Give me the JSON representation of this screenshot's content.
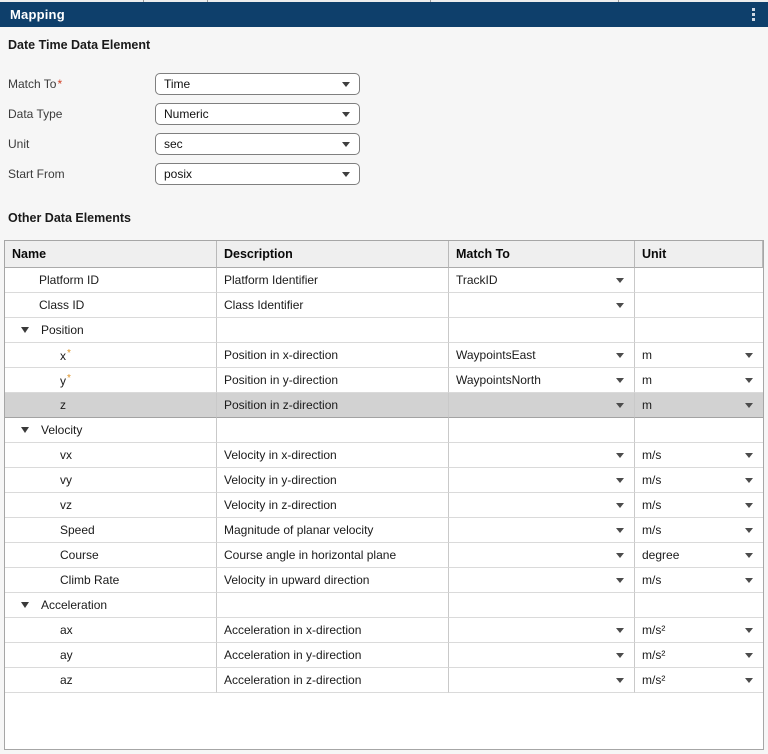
{
  "titlebar": {
    "title": "Mapping",
    "bg_color": "#0e3f6b"
  },
  "datetime_section": {
    "heading": "Date Time Data Element",
    "fields": [
      {
        "label": "Match To",
        "required": true,
        "value": "Time"
      },
      {
        "label": "Data Type",
        "required": false,
        "value": "Numeric"
      },
      {
        "label": "Unit",
        "required": false,
        "value": "sec"
      },
      {
        "label": "Start From",
        "required": false,
        "value": "posix"
      }
    ]
  },
  "other_section": {
    "heading": "Other Data Elements",
    "table": {
      "columns": [
        "Name",
        "Description",
        "Match To",
        "Unit"
      ],
      "rows": [
        {
          "level": 1,
          "name": "Platform ID",
          "required": false,
          "description": "Platform Identifier",
          "match_to": "TrackID",
          "match_dropdown": true,
          "unit": "",
          "unit_dropdown": false,
          "selected": false
        },
        {
          "level": 1,
          "name": "Class ID",
          "required": false,
          "description": "Class Identifier",
          "match_to": "",
          "match_dropdown": true,
          "unit": "",
          "unit_dropdown": false,
          "selected": false
        },
        {
          "group": true,
          "name": "Position"
        },
        {
          "level": 2,
          "name": "x",
          "required": true,
          "description": "Position in x-direction",
          "match_to": "WaypointsEast",
          "match_dropdown": true,
          "unit": "m",
          "unit_dropdown": true,
          "selected": false
        },
        {
          "level": 2,
          "name": "y",
          "required": true,
          "description": "Position in y-direction",
          "match_to": "WaypointsNorth",
          "match_dropdown": true,
          "unit": "m",
          "unit_dropdown": true,
          "selected": false
        },
        {
          "level": 2,
          "name": "z",
          "required": false,
          "description": "Position in z-direction",
          "match_to": "",
          "match_dropdown": true,
          "unit": "m",
          "unit_dropdown": true,
          "selected": true
        },
        {
          "group": true,
          "name": "Velocity"
        },
        {
          "level": 2,
          "name": "vx",
          "required": false,
          "description": "Velocity in x-direction",
          "match_to": "",
          "match_dropdown": true,
          "unit": "m/s",
          "unit_dropdown": true,
          "selected": false
        },
        {
          "level": 2,
          "name": "vy",
          "required": false,
          "description": "Velocity in y-direction",
          "match_to": "",
          "match_dropdown": true,
          "unit": "m/s",
          "unit_dropdown": true,
          "selected": false
        },
        {
          "level": 2,
          "name": "vz",
          "required": false,
          "description": "Velocity in z-direction",
          "match_to": "",
          "match_dropdown": true,
          "unit": "m/s",
          "unit_dropdown": true,
          "selected": false
        },
        {
          "level": 2,
          "name": "Speed",
          "required": false,
          "description": "Magnitude of planar velocity",
          "match_to": "",
          "match_dropdown": true,
          "unit": "m/s",
          "unit_dropdown": true,
          "selected": false
        },
        {
          "level": 2,
          "name": "Course",
          "required": false,
          "description": "Course angle in horizontal plane",
          "match_to": "",
          "match_dropdown": true,
          "unit": "degree",
          "unit_dropdown": true,
          "selected": false
        },
        {
          "level": 2,
          "name": "Climb Rate",
          "required": false,
          "description": "Velocity in upward direction",
          "match_to": "",
          "match_dropdown": true,
          "unit": "m/s",
          "unit_dropdown": true,
          "selected": false
        },
        {
          "group": true,
          "name": "Acceleration"
        },
        {
          "level": 2,
          "name": "ax",
          "required": false,
          "description": "Acceleration in x-direction",
          "match_to": "",
          "match_dropdown": true,
          "unit": "m/s²",
          "unit_dropdown": true,
          "selected": false
        },
        {
          "level": 2,
          "name": "ay",
          "required": false,
          "description": "Acceleration in y-direction",
          "match_to": "",
          "match_dropdown": true,
          "unit": "m/s²",
          "unit_dropdown": true,
          "selected": false
        },
        {
          "level": 2,
          "name": "az",
          "required": false,
          "description": "Acceleration in z-direction",
          "match_to": "",
          "match_dropdown": true,
          "unit": "m/s²",
          "unit_dropdown": true,
          "selected": false
        }
      ]
    }
  },
  "colors": {
    "titlebar_bg": "#0e3f6b",
    "selected_row_bg": "#d2d2d2",
    "required_label_asterisk": "#cf3e22",
    "required_cell_asterisk": "#dd9224"
  },
  "icons": {
    "kebab": "kebab-menu-icon",
    "chevron": "chevron-down-icon",
    "collapse": "collapse-triangle-icon"
  }
}
